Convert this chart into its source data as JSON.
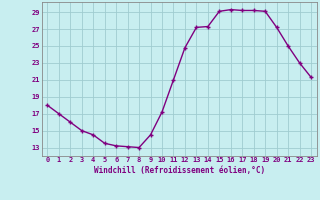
{
  "x": [
    0,
    1,
    2,
    3,
    4,
    5,
    6,
    7,
    8,
    9,
    10,
    11,
    12,
    13,
    14,
    15,
    16,
    17,
    18,
    19,
    20,
    21,
    22,
    23
  ],
  "y": [
    18,
    17,
    16,
    15,
    14.5,
    13.5,
    13.2,
    13.1,
    13.0,
    14.5,
    17.2,
    21,
    24.8,
    27.2,
    27.3,
    29.1,
    29.3,
    29.2,
    29.2,
    29.1,
    27.2,
    25,
    23,
    21.3
  ],
  "line_color": "#800080",
  "marker": "+",
  "bg_color": "#c8eef0",
  "grid_color": "#a0ccd0",
  "xlabel": "Windchill (Refroidissement éolien,°C)",
  "yticks": [
    13,
    15,
    17,
    19,
    21,
    23,
    25,
    27,
    29
  ],
  "xticks": [
    0,
    1,
    2,
    3,
    4,
    5,
    6,
    7,
    8,
    9,
    10,
    11,
    12,
    13,
    14,
    15,
    16,
    17,
    18,
    19,
    20,
    21,
    22,
    23
  ],
  "ylim": [
    12.0,
    30.2
  ],
  "xlim": [
    -0.5,
    23.5
  ],
  "tick_color": "#800080",
  "label_color": "#800080",
  "spine_color": "#888888",
  "tick_fontsize": 5.0,
  "xlabel_fontsize": 5.5,
  "linewidth": 1.0,
  "markersize": 3.5
}
